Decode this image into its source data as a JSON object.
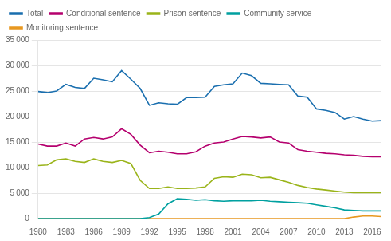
{
  "chart_data": {
    "type": "line",
    "x": [
      1980,
      1981,
      1982,
      1983,
      1984,
      1985,
      1986,
      1987,
      1988,
      1989,
      1990,
      1991,
      1992,
      1993,
      1994,
      1995,
      1996,
      1997,
      1998,
      1999,
      2000,
      2001,
      2002,
      2003,
      2004,
      2005,
      2006,
      2007,
      2008,
      2009,
      2010,
      2011,
      2012,
      2013,
      2014,
      2015,
      2016,
      2017
    ],
    "series": [
      {
        "name": "Total",
        "color": "#1a6faf",
        "values": [
          24900,
          24700,
          25000,
          26300,
          25700,
          25500,
          27500,
          27200,
          26800,
          29000,
          27300,
          25500,
          22200,
          22700,
          22500,
          22400,
          23700,
          23700,
          23800,
          25900,
          26200,
          26400,
          28500,
          28000,
          26500,
          26400,
          26300,
          26200,
          24000,
          23800,
          21500,
          21200,
          20800,
          19500,
          20000,
          19500,
          19100,
          19200
        ]
      },
      {
        "name": "Conditional sentence",
        "color": "#b5006e",
        "values": [
          14600,
          14200,
          14200,
          14800,
          14200,
          15600,
          15900,
          15600,
          16000,
          17600,
          16500,
          14400,
          12900,
          13200,
          13000,
          12700,
          12700,
          13100,
          14200,
          14800,
          15000,
          15600,
          16100,
          16000,
          15800,
          16000,
          15000,
          14800,
          13500,
          13200,
          13000,
          12800,
          12700,
          12500,
          12400,
          12200,
          12100,
          12100
        ]
      },
      {
        "name": "Prison sentence",
        "color": "#9ab41a",
        "values": [
          10400,
          10500,
          11500,
          11700,
          11200,
          11000,
          11700,
          11200,
          11000,
          11400,
          10800,
          7500,
          5900,
          5900,
          6200,
          5900,
          5900,
          6000,
          6200,
          7900,
          8200,
          8100,
          8700,
          8600,
          8000,
          8100,
          7600,
          7100,
          6500,
          6100,
          5800,
          5600,
          5400,
          5200,
          5100,
          5100,
          5100,
          5100
        ]
      },
      {
        "name": "Community service",
        "color": "#00a0a0",
        "values": [
          0,
          0,
          0,
          0,
          0,
          0,
          0,
          0,
          0,
          0,
          0,
          0,
          200,
          900,
          2900,
          3900,
          3800,
          3600,
          3700,
          3500,
          3400,
          3500,
          3500,
          3500,
          3600,
          3400,
          3300,
          3200,
          3100,
          3000,
          2700,
          2400,
          2100,
          1700,
          1600,
          1500,
          1500,
          1500
        ]
      },
      {
        "name": "Monitoring sentence",
        "color": "#e89820",
        "values": [
          0,
          0,
          0,
          0,
          0,
          0,
          0,
          0,
          0,
          0,
          0,
          0,
          0,
          0,
          0,
          0,
          0,
          0,
          0,
          0,
          0,
          0,
          0,
          0,
          0,
          0,
          0,
          0,
          0,
          0,
          0,
          0,
          0,
          0,
          300,
          500,
          500,
          400
        ]
      }
    ],
    "xlim": [
      1980,
      2017
    ],
    "xticks": [
      1980,
      1983,
      1986,
      1989,
      1992,
      1995,
      1998,
      2001,
      2004,
      2007,
      2010,
      2013,
      2016
    ],
    "ylim": [
      0,
      35000
    ],
    "yticks": [
      0,
      {
        "value": 5000,
        "label": "5 000"
      },
      {
        "value": 10000,
        "label": "10 000"
      },
      {
        "value": 15000,
        "label": "15 000"
      },
      {
        "value": 20000,
        "label": "20 000"
      },
      {
        "value": 25000,
        "label": "25 000"
      },
      {
        "value": 30000,
        "label": "30 000"
      },
      {
        "value": 35000,
        "label": "35 000"
      }
    ],
    "grid": "y",
    "legend": "upper left"
  }
}
